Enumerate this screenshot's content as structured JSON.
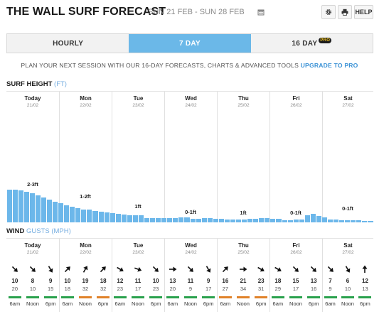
{
  "header": {
    "title": "THE WALL SURF FORECAST",
    "dates": "SUN 21 FEB - SUN 28 FEB",
    "help_label": "HELP"
  },
  "tabs": [
    {
      "label": "HOURLY",
      "active": false
    },
    {
      "label": "7 DAY",
      "active": true
    },
    {
      "label": "16 DAY",
      "badge": "PRO",
      "active": false
    }
  ],
  "promo": {
    "text": "PLAN YOUR NEXT SESSION WITH OUR 16-DAY FORECASTS, CHARTS & ADVANCED TOOLS",
    "link": "UPGRADE TO PRO"
  },
  "days": [
    {
      "name": "Today",
      "date": "21/02"
    },
    {
      "name": "Mon",
      "date": "22/02"
    },
    {
      "name": "Tue",
      "date": "23/02"
    },
    {
      "name": "Wed",
      "date": "24/02"
    },
    {
      "name": "Thu",
      "date": "25/02"
    },
    {
      "name": "Fri",
      "date": "26/02"
    },
    {
      "name": "Sat",
      "date": "27/02"
    }
  ],
  "surf": {
    "title": "SURF HEIGHT",
    "unit": "(FT)",
    "day_labels": [
      "2-3ft",
      "1-2ft",
      "1ft",
      "0-1ft",
      "1ft",
      "0-1ft",
      "0-1ft"
    ]
  },
  "chart_data": {
    "type": "bar",
    "ylabel": "Surf height (ft)",
    "ylim": [
      0,
      10
    ],
    "values": [
      2.5,
      2.5,
      2.45,
      2.3,
      2.2,
      2.05,
      1.9,
      1.75,
      1.55,
      1.45,
      1.3,
      1.2,
      1.1,
      1.0,
      0.95,
      0.85,
      0.8,
      0.75,
      0.7,
      0.65,
      0.6,
      0.55,
      0.55,
      0.55,
      0.35,
      0.3,
      0.3,
      0.3,
      0.35,
      0.35,
      0.4,
      0.4,
      0.25,
      0.25,
      0.3,
      0.3,
      0.25,
      0.25,
      0.2,
      0.2,
      0.2,
      0.2,
      0.25,
      0.25,
      0.3,
      0.3,
      0.25,
      0.25,
      0.15,
      0.15,
      0.2,
      0.2,
      0.55,
      0.65,
      0.5,
      0.4,
      0.2,
      0.2,
      0.15,
      0.15,
      0.15,
      0.15,
      0.1,
      0.1
    ]
  },
  "wind": {
    "title": "WIND",
    "unit": "GUSTS (MPH)",
    "times": [
      "6am",
      "Noon",
      "6pm"
    ],
    "colors": {
      "good": "#2aa14d",
      "fair": "#f3a21c",
      "poor": "#e0822a"
    },
    "cells": [
      {
        "dir": 135,
        "speed": "10",
        "gust": "20",
        "rating": "good"
      },
      {
        "dir": 135,
        "speed": "8",
        "gust": "10",
        "rating": "good"
      },
      {
        "dir": 150,
        "speed": "9",
        "gust": "15",
        "rating": "good"
      },
      {
        "dir": 45,
        "speed": "10",
        "gust": "18",
        "rating": "good"
      },
      {
        "dir": 30,
        "speed": "19",
        "gust": "32",
        "rating": "poor"
      },
      {
        "dir": 45,
        "speed": "18",
        "gust": "32",
        "rating": "poor"
      },
      {
        "dir": 120,
        "speed": "12",
        "gust": "23",
        "rating": "good"
      },
      {
        "dir": 110,
        "speed": "11",
        "gust": "17",
        "rating": "good"
      },
      {
        "dir": 135,
        "speed": "10",
        "gust": "23",
        "rating": "good"
      },
      {
        "dir": 90,
        "speed": "13",
        "gust": "20",
        "rating": "good"
      },
      {
        "dir": 135,
        "speed": "11",
        "gust": "9",
        "rating": "good"
      },
      {
        "dir": 150,
        "speed": "9",
        "gust": "17",
        "rating": "good"
      },
      {
        "dir": 45,
        "speed": "16",
        "gust": "27",
        "rating": "poor"
      },
      {
        "dir": 90,
        "speed": "21",
        "gust": "34",
        "rating": "poor"
      },
      {
        "dir": 120,
        "speed": "23",
        "gust": "31",
        "rating": "poor"
      },
      {
        "dir": 120,
        "speed": "18",
        "gust": "29",
        "rating": "good"
      },
      {
        "dir": 135,
        "speed": "15",
        "gust": "17",
        "rating": "good"
      },
      {
        "dir": 135,
        "speed": "13",
        "gust": "16",
        "rating": "good"
      },
      {
        "dir": 135,
        "speed": "7",
        "gust": "9",
        "rating": "good"
      },
      {
        "dir": 150,
        "speed": "6",
        "gust": "10",
        "rating": "good"
      },
      {
        "dir": 0,
        "speed": "12",
        "gust": "13",
        "rating": "good"
      }
    ]
  }
}
